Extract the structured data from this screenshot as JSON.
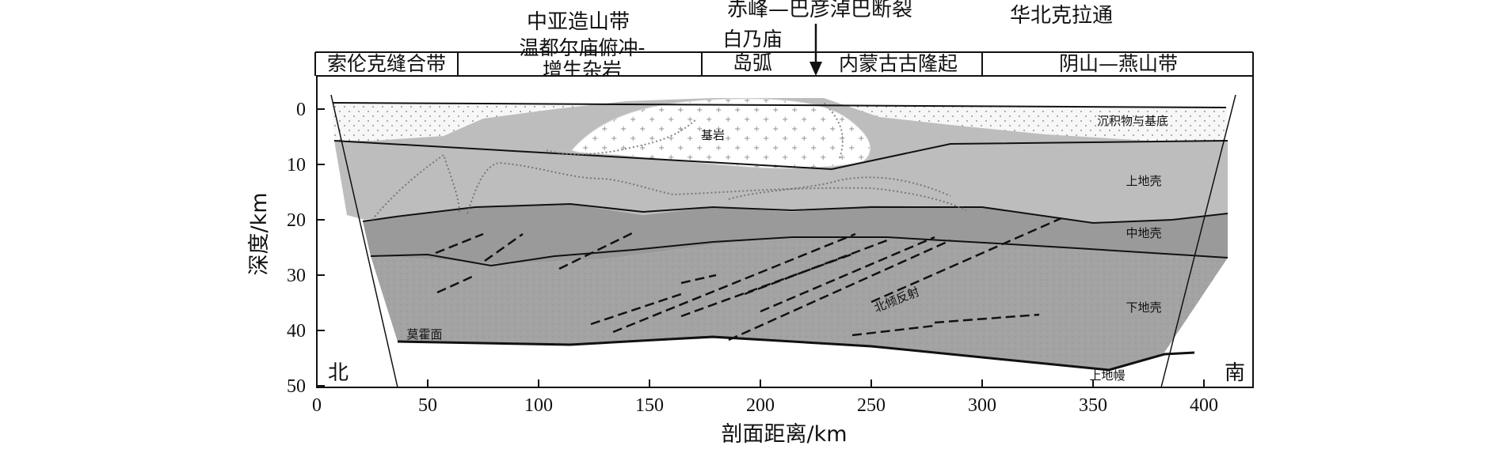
{
  "top_labels": {
    "zhongya": "中亚造山带",
    "chifeng": "赤峰—巴彦淖巴断裂",
    "huabei": "华北克拉通"
  },
  "zones": {
    "suolunke": "索伦克缝合带",
    "wendu_1": "温都尔庙俯冲-",
    "wendu_2": "增生杂岩",
    "bainai_1": "白乃庙",
    "bainai_2": "岛弧",
    "neimeng": "内蒙古古隆起",
    "yinshan": "阴山—燕山带"
  },
  "layers": {
    "sediment": "沉积物与基底",
    "granite": "基岩",
    "upper": "上地壳",
    "middle": "中地壳",
    "lower": "下地壳",
    "moho": "莫霍面",
    "mantle": "上地幔",
    "reflection": "北倾反射"
  },
  "directions": {
    "north": "北",
    "south": "南"
  },
  "axes": {
    "x_title": "剖面距离/km",
    "y_title": "深度/km",
    "x_ticks": [
      "0",
      "50",
      "100",
      "150",
      "200",
      "250",
      "300",
      "350",
      "400"
    ],
    "y_ticks": [
      "0",
      "10",
      "20",
      "30",
      "40",
      "50"
    ]
  },
  "colors": {
    "sediment": "#f2f2f2",
    "upper": "#bdbdbd",
    "middle": "#9a9a9a",
    "lower": "#a6a6a6",
    "granite": "#ffffff"
  }
}
